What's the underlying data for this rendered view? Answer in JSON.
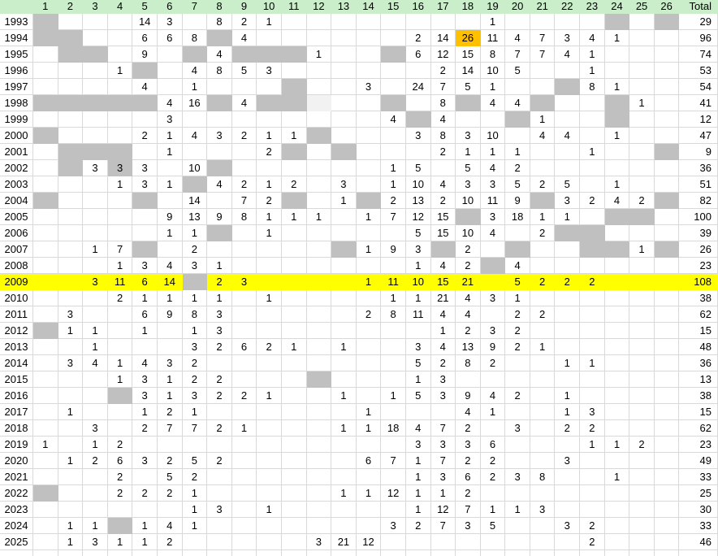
{
  "styles": {
    "header_bg": "#c9eec9",
    "gridline": "#d9d9d9",
    "gray_fill": "#c0c0c0",
    "light_fill": "#f2f2f2",
    "yellow_fill": "#ffff00",
    "orange_fill": "#ffc000",
    "text_color": "#000000"
  },
  "header": {
    "corner": "",
    "columns": [
      "1",
      "2",
      "3",
      "4",
      "5",
      "6",
      "7",
      "8",
      "9",
      "10",
      "11",
      "12",
      "13",
      "14",
      "15",
      "16",
      "17",
      "18",
      "19",
      "20",
      "21",
      "22",
      "23",
      "24",
      "25",
      "26"
    ],
    "total_label": "Total"
  },
  "rows": [
    {
      "year": "1993",
      "total": "29",
      "cells": {
        "5": "14",
        "6": "3",
        "8": "8",
        "9": "2",
        "10": "1",
        "19": "1"
      },
      "gray": [
        1,
        24,
        26
      ]
    },
    {
      "year": "1994",
      "total": "96",
      "cells": {
        "5": "6",
        "6": "6",
        "7": "8",
        "9": "4",
        "16": "2",
        "17": "14",
        "18": "26",
        "19": "11",
        "20": "4",
        "21": "7",
        "22": "3",
        "23": "4",
        "24": "1"
      },
      "gray": [
        1,
        2,
        8
      ],
      "orange": [
        18
      ]
    },
    {
      "year": "1995",
      "total": "74",
      "cells": {
        "5": "9",
        "8": "4",
        "12": "1",
        "16": "6",
        "17": "12",
        "18": "15",
        "19": "8",
        "20": "7",
        "21": "7",
        "22": "4",
        "23": "1"
      },
      "gray": [
        2,
        3,
        7,
        9,
        10,
        11,
        15
      ]
    },
    {
      "year": "1996",
      "total": "53",
      "cells": {
        "4": "1",
        "7": "4",
        "8": "8",
        "9": "5",
        "10": "3",
        "17": "2",
        "18": "14",
        "19": "10",
        "20": "5",
        "23": "1"
      },
      "gray": [
        5
      ]
    },
    {
      "year": "1997",
      "total": "54",
      "cells": {
        "5": "4",
        "7": "1",
        "14": "3",
        "16": "24",
        "17": "7",
        "18": "5",
        "19": "1",
        "23": "8",
        "24": "1"
      },
      "gray": [
        11,
        22
      ]
    },
    {
      "year": "1998",
      "total": "41",
      "cells": {
        "6": "4",
        "7": "16",
        "9": "4",
        "17": "8",
        "19": "4",
        "20": "4",
        "25": "1"
      },
      "gray": [
        1,
        2,
        3,
        4,
        5,
        8,
        10,
        11,
        15,
        18,
        21,
        24
      ],
      "light": [
        12
      ]
    },
    {
      "year": "1999",
      "total": "12",
      "cells": {
        "6": "3",
        "15": "4",
        "17": "4",
        "21": "1"
      },
      "gray": [
        16,
        20,
        24
      ]
    },
    {
      "year": "2000",
      "total": "47",
      "cells": {
        "5": "2",
        "6": "1",
        "7": "4",
        "8": "3",
        "9": "2",
        "10": "1",
        "11": "1",
        "16": "3",
        "17": "8",
        "18": "3",
        "19": "10",
        "21": "4",
        "22": "4",
        "24": "1"
      },
      "gray": [
        1,
        12
      ]
    },
    {
      "year": "2001",
      "total": "9",
      "cells": {
        "6": "1",
        "10": "2",
        "17": "2",
        "18": "1",
        "19": "1",
        "20": "1",
        "23": "1"
      },
      "gray": [
        2,
        3,
        4,
        11,
        13,
        26
      ]
    },
    {
      "year": "2002",
      "total": "36",
      "cells": {
        "3": "3",
        "4": "3",
        "5": "3",
        "7": "10",
        "15": "1",
        "16": "5",
        "18": "5",
        "19": "4",
        "20": "2"
      },
      "gray": [
        2,
        4,
        8
      ]
    },
    {
      "year": "2003",
      "total": "51",
      "cells": {
        "4": "1",
        "5": "3",
        "6": "1",
        "8": "4",
        "9": "2",
        "10": "1",
        "11": "2",
        "13": "3",
        "15": "1",
        "16": "10",
        "17": "4",
        "18": "3",
        "19": "3",
        "20": "5",
        "21": "2",
        "22": "5",
        "24": "1"
      },
      "gray": [
        7
      ]
    },
    {
      "year": "2004",
      "total": "82",
      "cells": {
        "7": "14",
        "9": "7",
        "10": "2",
        "13": "1",
        "15": "2",
        "16": "13",
        "17": "2",
        "18": "10",
        "19": "11",
        "20": "9",
        "22": "3",
        "23": "2",
        "24": "4",
        "25": "2"
      },
      "gray": [
        1,
        5,
        11,
        14,
        21,
        26
      ]
    },
    {
      "year": "2005",
      "total": "100",
      "cells": {
        "6": "9",
        "7": "13",
        "8": "9",
        "9": "8",
        "10": "1",
        "11": "1",
        "12": "1",
        "14": "1",
        "15": "7",
        "16": "12",
        "17": "15",
        "19": "3",
        "20": "18",
        "21": "1",
        "22": "1"
      },
      "gray": [
        18,
        24,
        25
      ]
    },
    {
      "year": "2006",
      "total": "39",
      "cells": {
        "6": "1",
        "7": "1",
        "10": "1",
        "16": "5",
        "17": "15",
        "18": "10",
        "19": "4",
        "21": "2"
      },
      "gray": [
        8,
        22,
        23
      ]
    },
    {
      "year": "2007",
      "total": "26",
      "cells": {
        "3": "1",
        "4": "7",
        "7": "2",
        "14": "1",
        "15": "9",
        "16": "3",
        "18": "2",
        "25": "1"
      },
      "gray": [
        5,
        13,
        17,
        20,
        23,
        24,
        26
      ]
    },
    {
      "year": "2008",
      "total": "23",
      "cells": {
        "4": "1",
        "5": "3",
        "6": "4",
        "7": "3",
        "8": "1",
        "16": "1",
        "17": "4",
        "18": "2",
        "20": "4"
      },
      "gray": [
        19
      ]
    },
    {
      "year": "2009",
      "total": "108",
      "highlight": "yellow",
      "cells": {
        "3": "3",
        "4": "11",
        "5": "6",
        "6": "14",
        "8": "2",
        "9": "3",
        "14": "1",
        "15": "11",
        "16": "10",
        "17": "15",
        "18": "21",
        "20": "5",
        "21": "2",
        "22": "2",
        "23": "2"
      },
      "gray": [
        7
      ]
    },
    {
      "year": "2010",
      "total": "38",
      "cells": {
        "4": "2",
        "5": "1",
        "6": "1",
        "7": "1",
        "8": "1",
        "10": "1",
        "15": "1",
        "16": "1",
        "17": "21",
        "18": "4",
        "19": "3",
        "20": "1"
      }
    },
    {
      "year": "2011",
      "total": "62",
      "cells": {
        "2": "3",
        "5": "6",
        "6": "9",
        "7": "8",
        "8": "3",
        "14": "2",
        "15": "8",
        "16": "11",
        "17": "4",
        "18": "4",
        "20": "2",
        "21": "2"
      }
    },
    {
      "year": "2012",
      "total": "15",
      "cells": {
        "2": "1",
        "3": "1",
        "5": "1",
        "7": "1",
        "8": "3",
        "17": "1",
        "18": "2",
        "19": "3",
        "20": "2"
      },
      "gray": [
        1
      ]
    },
    {
      "year": "2013",
      "total": "48",
      "cells": {
        "3": "1",
        "7": "3",
        "8": "2",
        "9": "6",
        "10": "2",
        "11": "1",
        "13": "1",
        "16": "3",
        "17": "4",
        "18": "13",
        "19": "9",
        "20": "2",
        "21": "1"
      }
    },
    {
      "year": "2014",
      "total": "36",
      "cells": {
        "2": "3",
        "3": "4",
        "4": "1",
        "5": "4",
        "6": "3",
        "7": "2",
        "16": "5",
        "17": "2",
        "18": "8",
        "19": "2",
        "22": "1",
        "23": "1"
      }
    },
    {
      "year": "2015",
      "total": "13",
      "cells": {
        "4": "1",
        "5": "3",
        "6": "1",
        "7": "2",
        "8": "2",
        "16": "1",
        "17": "3"
      },
      "gray": [
        12
      ]
    },
    {
      "year": "2016",
      "total": "38",
      "cells": {
        "5": "3",
        "6": "1",
        "7": "3",
        "8": "2",
        "9": "2",
        "10": "1",
        "13": "1",
        "15": "1",
        "16": "5",
        "17": "3",
        "18": "9",
        "19": "4",
        "20": "2",
        "22": "1"
      },
      "gray": [
        4
      ]
    },
    {
      "year": "2017",
      "total": "15",
      "cells": {
        "2": "1",
        "5": "1",
        "6": "2",
        "7": "1",
        "14": "1",
        "18": "4",
        "19": "1",
        "22": "1",
        "23": "3"
      }
    },
    {
      "year": "2018",
      "total": "62",
      "cells": {
        "3": "3",
        "5": "2",
        "6": "7",
        "7": "7",
        "8": "2",
        "9": "1",
        "13": "1",
        "14": "1",
        "15": "18",
        "16": "4",
        "17": "7",
        "18": "2",
        "20": "3",
        "22": "2",
        "23": "2"
      }
    },
    {
      "year": "2019",
      "total": "23",
      "cells": {
        "1": "1",
        "3": "1",
        "4": "2",
        "16": "3",
        "17": "3",
        "18": "3",
        "19": "6",
        "23": "1",
        "24": "1",
        "25": "2"
      }
    },
    {
      "year": "2020",
      "total": "49",
      "cells": {
        "2": "1",
        "3": "2",
        "4": "6",
        "5": "3",
        "6": "2",
        "7": "5",
        "8": "2",
        "14": "6",
        "15": "7",
        "16": "1",
        "17": "7",
        "18": "2",
        "19": "2",
        "22": "3"
      }
    },
    {
      "year": "2021",
      "total": "33",
      "cells": {
        "4": "2",
        "6": "5",
        "7": "2",
        "16": "1",
        "17": "3",
        "18": "6",
        "19": "2",
        "20": "3",
        "21": "8",
        "24": "1"
      }
    },
    {
      "year": "2022",
      "total": "25",
      "cells": {
        "4": "2",
        "5": "2",
        "6": "2",
        "7": "1",
        "13": "1",
        "14": "1",
        "15": "12",
        "16": "1",
        "17": "1",
        "18": "2"
      },
      "gray": [
        1
      ]
    },
    {
      "year": "2023",
      "total": "30",
      "cells": {
        "7": "1",
        "8": "3",
        "10": "1",
        "16": "1",
        "17": "12",
        "18": "7",
        "19": "1",
        "20": "1",
        "21": "3"
      }
    },
    {
      "year": "2024",
      "total": "33",
      "cells": {
        "2": "1",
        "3": "1",
        "5": "1",
        "6": "4",
        "7": "1",
        "15": "3",
        "16": "2",
        "17": "7",
        "18": "3",
        "19": "5",
        "22": "3",
        "23": "2"
      },
      "gray": [
        4
      ]
    },
    {
      "year": "2025",
      "total": "46",
      "cells": {
        "2": "1",
        "3": "3",
        "4": "1",
        "5": "1",
        "6": "2",
        "12": "3",
        "13": "21",
        "14": "12",
        "23": "2"
      }
    }
  ]
}
